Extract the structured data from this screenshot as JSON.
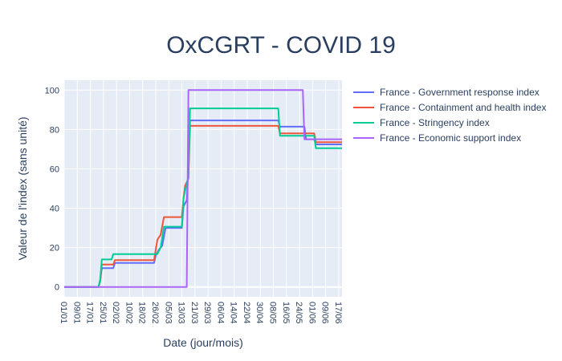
{
  "chart_data": {
    "type": "line",
    "title": "OxCGRT - COVID 19",
    "xlabel": "Date (jour/mois)",
    "ylabel": "Valeur de l'index (sans unité)",
    "x_tick_labels": [
      "01/01",
      "09/01",
      "17/01",
      "25/01",
      "02/02",
      "10/02",
      "18/02",
      "26/02",
      "05/03",
      "13/03",
      "21/03",
      "29/03",
      "06/04",
      "14/04",
      "22/04",
      "30/04",
      "08/05",
      "16/05",
      "24/05",
      "01/06",
      "09/06",
      "17/06"
    ],
    "y_ticks": [
      0,
      20,
      40,
      60,
      80,
      100
    ],
    "xlim_days": [
      0,
      170
    ],
    "ylim": [
      -5,
      105
    ],
    "grid": true,
    "legend_placement": "top-right, outside plot",
    "series": [
      {
        "name": "France - Government response index",
        "color": "#636efa",
        "points": [
          [
            0,
            0
          ],
          [
            21,
            0
          ],
          [
            22,
            3
          ],
          [
            23,
            9.6
          ],
          [
            30,
            9.6
          ],
          [
            31,
            12.2
          ],
          [
            55,
            12.2
          ],
          [
            56,
            16
          ],
          [
            58,
            19
          ],
          [
            60,
            21
          ],
          [
            62,
            30
          ],
          [
            72,
            30
          ],
          [
            73,
            41
          ],
          [
            75,
            44
          ],
          [
            76,
            60
          ],
          [
            77,
            84.6
          ],
          [
            131,
            84.6
          ],
          [
            132,
            81.4
          ],
          [
            147,
            81.4
          ],
          [
            148,
            75
          ],
          [
            153,
            75
          ],
          [
            154,
            72.4
          ],
          [
            170,
            72.4
          ]
        ]
      },
      {
        "name": "France - Containment and health index",
        "color": "#ef553b",
        "points": [
          [
            0,
            0
          ],
          [
            21,
            0
          ],
          [
            22,
            3
          ],
          [
            23,
            11.4
          ],
          [
            30,
            11.4
          ],
          [
            31,
            13.6
          ],
          [
            55,
            13.6
          ],
          [
            56,
            19
          ],
          [
            57,
            24
          ],
          [
            59,
            26.5
          ],
          [
            61,
            35.5
          ],
          [
            72,
            35.5
          ],
          [
            73,
            45
          ],
          [
            74,
            51.5
          ],
          [
            76,
            55
          ],
          [
            77,
            81.8
          ],
          [
            131,
            81.8
          ],
          [
            132,
            78
          ],
          [
            153,
            78
          ],
          [
            154,
            73.5
          ],
          [
            170,
            73.5
          ]
        ]
      },
      {
        "name": "France - Stringency index",
        "color": "#00cc96",
        "points": [
          [
            0,
            0
          ],
          [
            21,
            0
          ],
          [
            22,
            4
          ],
          [
            23,
            14
          ],
          [
            29,
            14
          ],
          [
            30,
            16.7
          ],
          [
            57,
            16.7
          ],
          [
            59,
            20
          ],
          [
            61,
            30.6
          ],
          [
            72,
            30.6
          ],
          [
            73,
            45
          ],
          [
            74,
            49
          ],
          [
            76,
            56
          ],
          [
            77,
            90.7
          ],
          [
            131,
            90.7
          ],
          [
            132,
            76.8
          ],
          [
            153,
            76.8
          ],
          [
            154,
            70.5
          ],
          [
            170,
            70.5
          ]
        ]
      },
      {
        "name": "France - Economic support index",
        "color": "#ab63fa",
        "points": [
          [
            0,
            0
          ],
          [
            75,
            0
          ],
          [
            76,
            100
          ],
          [
            146,
            100
          ],
          [
            147,
            75
          ],
          [
            170,
            75
          ]
        ]
      }
    ]
  }
}
